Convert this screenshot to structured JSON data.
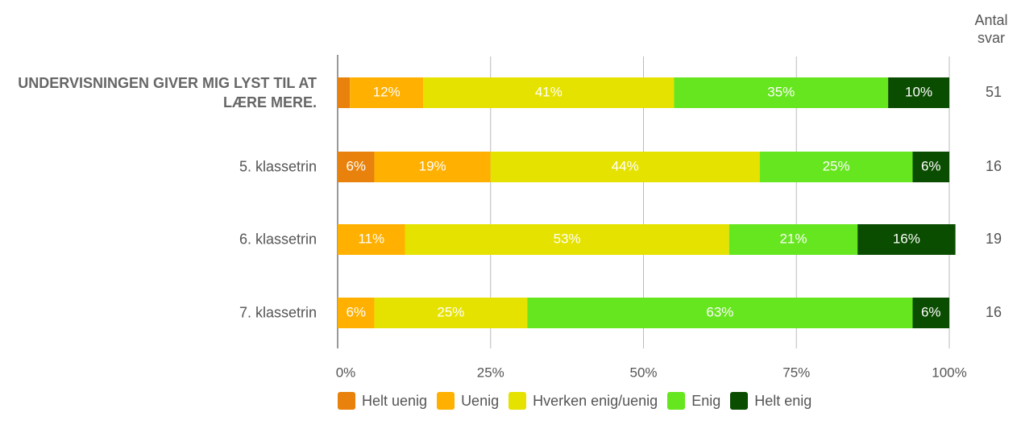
{
  "chart_data": {
    "type": "stacked-bar",
    "categories": [
      "UNDERVISNINGEN GIVER MIG LYST TIL AT LÆRE MERE.",
      "5. klassetrin",
      "6. klassetrin",
      "7. klassetrin"
    ],
    "series": [
      {
        "name": "Helt uenig",
        "color": "#e8820c",
        "values": [
          2,
          6,
          null,
          null
        ],
        "value_labels": [
          null,
          "6%",
          null,
          null
        ]
      },
      {
        "name": "Uenig",
        "color": "#ffb000",
        "values": [
          12,
          19,
          11,
          6
        ],
        "value_labels": [
          "12%",
          "19%",
          "11%",
          "6%"
        ]
      },
      {
        "name": "Hverken enig/uenig",
        "color": "#e6e200",
        "values": [
          41,
          44,
          53,
          25
        ],
        "value_labels": [
          "41%",
          "44%",
          "53%",
          "25%"
        ]
      },
      {
        "name": "Enig",
        "color": "#66e61e",
        "values": [
          35,
          25,
          21,
          63
        ],
        "value_labels": [
          "35%",
          "25%",
          "21%",
          "63%"
        ]
      },
      {
        "name": "Helt enig",
        "color": "#0b4d00",
        "values": [
          10,
          6,
          16,
          6
        ],
        "value_labels": [
          "10%",
          "6%",
          "16%",
          "6%"
        ]
      }
    ],
    "count_title": "Antal svar",
    "counts": [
      51,
      16,
      19,
      16
    ],
    "xlim": [
      0,
      100
    ],
    "xticks": [
      {
        "value": 0,
        "label": "0%"
      },
      {
        "value": 25,
        "label": "25%"
      },
      {
        "value": 50,
        "label": "50%"
      },
      {
        "value": 75,
        "label": "75%"
      },
      {
        "value": 100,
        "label": "100%"
      }
    ],
    "grid": true
  }
}
